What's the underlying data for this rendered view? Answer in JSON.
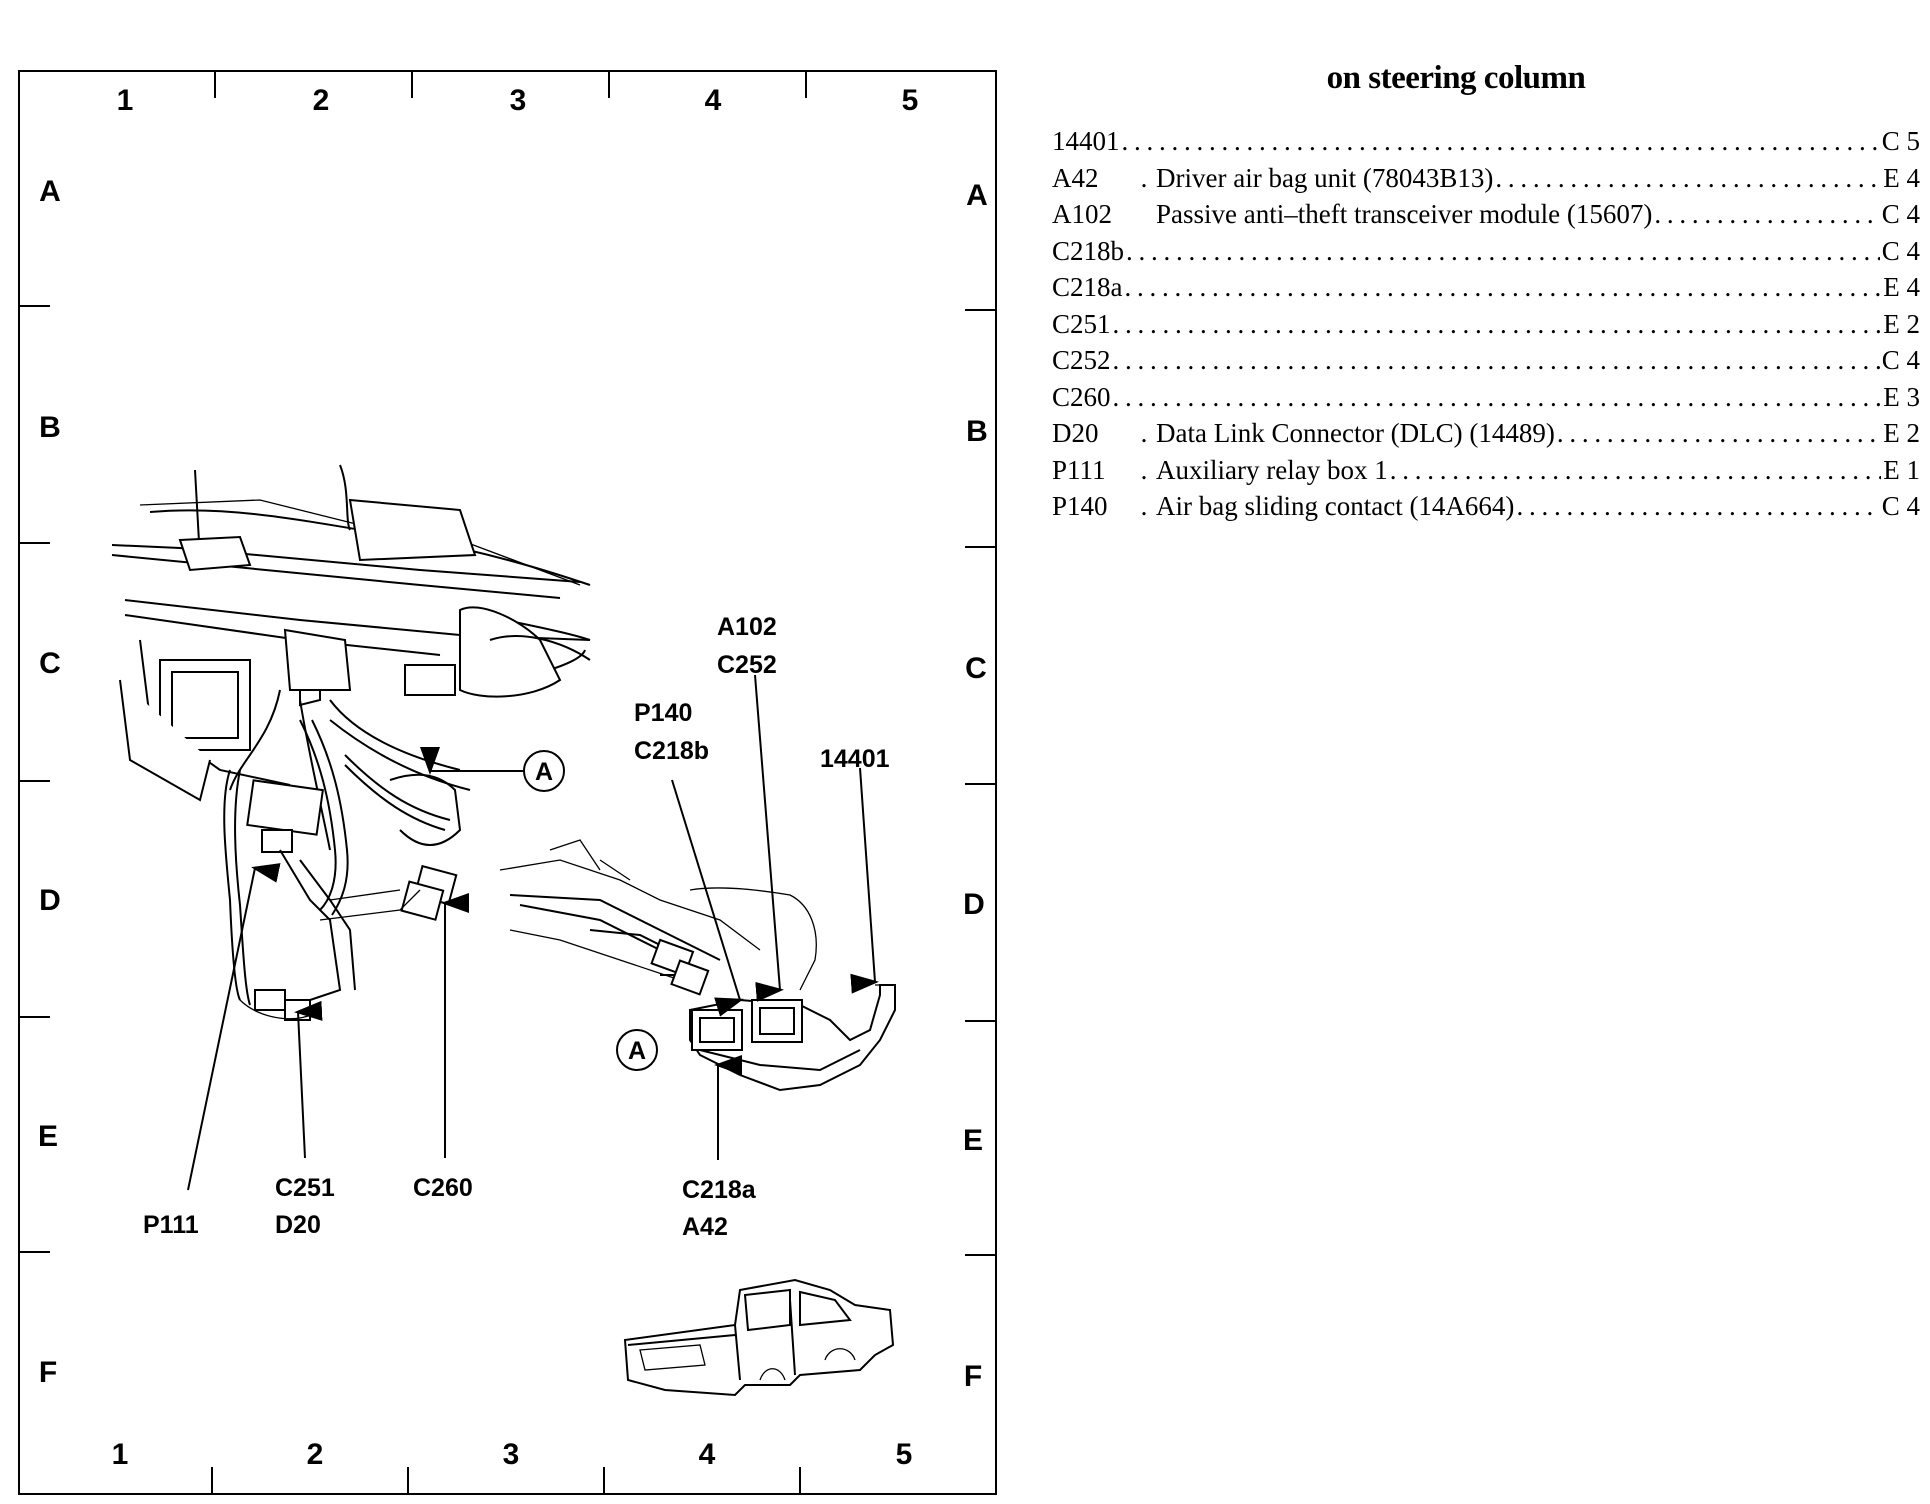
{
  "grid": {
    "columns": [
      "1",
      "2",
      "3",
      "4",
      "5"
    ],
    "rows": [
      "A",
      "B",
      "C",
      "D",
      "E",
      "F"
    ]
  },
  "callouts": {
    "p111": "P111",
    "c251": "C251",
    "d20": "D20",
    "c260": "C260",
    "c218a": "C218a",
    "a42": "A42",
    "p140": "P140",
    "c218b": "C218b",
    "a102": "A102",
    "c252": "C252",
    "n14401": "14401",
    "view_a": "A"
  },
  "legend": {
    "title": "on steering column",
    "items": [
      {
        "code": "14401",
        "sep": "",
        "desc": "",
        "location": "C 5"
      },
      {
        "code": "A42",
        "sep": ".",
        "desc": "Driver air bag unit (78043B13)",
        "location": "E 4"
      },
      {
        "code": "A102",
        "sep": "",
        "desc": "Passive anti–theft transceiver module (15607)",
        "location": "C 4"
      },
      {
        "code": "C218b",
        "sep": "",
        "desc": "",
        "location": "C 4"
      },
      {
        "code": "C218a",
        "sep": "",
        "desc": "",
        "location": "E 4"
      },
      {
        "code": "C251",
        "sep": "",
        "desc": "",
        "location": "E 2"
      },
      {
        "code": "C252",
        "sep": "",
        "desc": "",
        "location": "C 4"
      },
      {
        "code": "C260",
        "sep": "",
        "desc": "",
        "location": "E 3"
      },
      {
        "code": "D20",
        "sep": ".",
        "desc": "Data Link Connector (DLC) (14489)",
        "location": "E 2"
      },
      {
        "code": "P111",
        "sep": ".",
        "desc": "Auxiliary relay box 1",
        "location": "E 1"
      },
      {
        "code": "P140",
        "sep": ".",
        "desc": "Air bag sliding contact (14A664)",
        "location": "C 4"
      }
    ]
  }
}
